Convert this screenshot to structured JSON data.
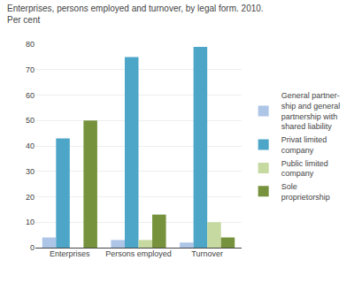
{
  "chart_data": {
    "type": "bar",
    "title": "Enterprises, persons employed and turnover, by legal form. 2010.",
    "subtitle": "Per cent",
    "categories": [
      "Enterprises",
      "Persons employed",
      "Turnover"
    ],
    "series": [
      {
        "name": "General partner-\nship and general\npartnership with\nshared liability",
        "color": "#adc6e8",
        "values": [
          4,
          3,
          2
        ]
      },
      {
        "name": "Privat limited\ncompany",
        "color": "#4da6c8",
        "values": [
          43,
          75,
          79
        ]
      },
      {
        "name": "Public limited\ncompany",
        "color": "#c6d9a0",
        "values": [
          0,
          3,
          10
        ]
      },
      {
        "name": "Sole\nproprietorship",
        "color": "#76923c",
        "values": [
          50,
          13,
          4
        ]
      }
    ],
    "ylim": [
      0,
      80
    ],
    "yticks": [
      0,
      10,
      20,
      30,
      40,
      50,
      60,
      70,
      80
    ],
    "grid": true,
    "legend": "right"
  }
}
